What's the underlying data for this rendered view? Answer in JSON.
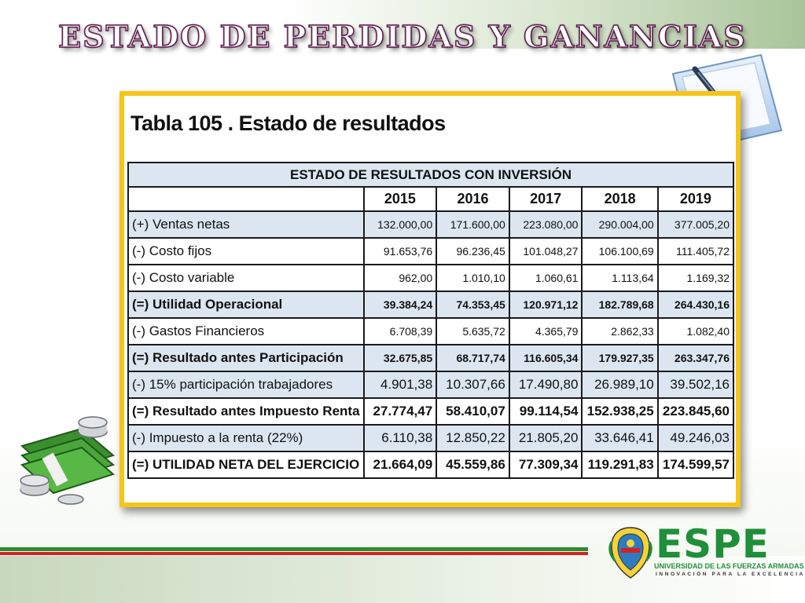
{
  "slide": {
    "title": "Estado de perdidas y ganancias"
  },
  "table": {
    "caption": "Tabla 105 . Estado de resultados",
    "header": "ESTADO DE RESULTADOS CON INVERSIÓN",
    "years": [
      "2015",
      "2016",
      "2017",
      "2018",
      "2019"
    ],
    "rows": [
      {
        "label": "(+) Ventas netas",
        "values": [
          "132.000,00",
          "171.600,00",
          "223.080,00",
          "290.004,00",
          "377.005,20"
        ]
      },
      {
        "label": "(-)  Costo fijos",
        "values": [
          "91.653,76",
          "96.236,45",
          "101.048,27",
          "106.100,69",
          "111.405,72"
        ]
      },
      {
        "label": "(-)  Costo variable",
        "values": [
          "962,00",
          "1.010,10",
          "1.060,61",
          "1.113,64",
          "1.169,32"
        ]
      },
      {
        "label": "(=) Utilidad Operacional",
        "values": [
          "39.384,24",
          "74.353,45",
          "120.971,12",
          "182.789,68",
          "264.430,16"
        ]
      },
      {
        "label": "(-)  Gastos Financieros",
        "values": [
          "6.708,39",
          "5.635,72",
          "4.365,79",
          "2.862,33",
          "1.082,40"
        ]
      },
      {
        "label": "(=) Resultado antes Participación",
        "values": [
          "32.675,85",
          "68.717,74",
          "116.605,34",
          "179.927,35",
          "263.347,76"
        ]
      },
      {
        "label": "(-)  15% participación trabajadores",
        "values": [
          "4.901,38",
          "10.307,66",
          "17.490,80",
          "26.989,10",
          "39.502,16"
        ]
      },
      {
        "label": "(=) Resultado antes Impuesto Renta",
        "values": [
          "27.774,47",
          "58.410,07",
          "99.114,54",
          "152.938,25",
          "223.845,60"
        ]
      },
      {
        "label": "(-)  Impuesto a la renta (22%)",
        "values": [
          "6.110,38",
          "12.850,22",
          "21.805,20",
          "33.646,41",
          "49.246,03"
        ]
      },
      {
        "label": "(=) UTILIDAD NETA DEL EJERCICIO",
        "values": [
          "21.664,09",
          "45.559,86",
          "77.309,34",
          "119.291,83",
          "174.599,57"
        ]
      }
    ]
  },
  "logo": {
    "name": "ESPE",
    "subtitle": "UNIVERSIDAD DE LAS FUERZAS ARMADAS",
    "motto": "INNOVACIÓN PARA LA EXCELENCIA"
  },
  "colors": {
    "frame": "#f5c518",
    "row_shade": "#dce6f1",
    "brand_green": "#1f8f3a",
    "title_outline": "#5b1a4a"
  },
  "icons": [
    "folder-pen-icon",
    "money-stack-icon",
    "university-crest-icon"
  ]
}
